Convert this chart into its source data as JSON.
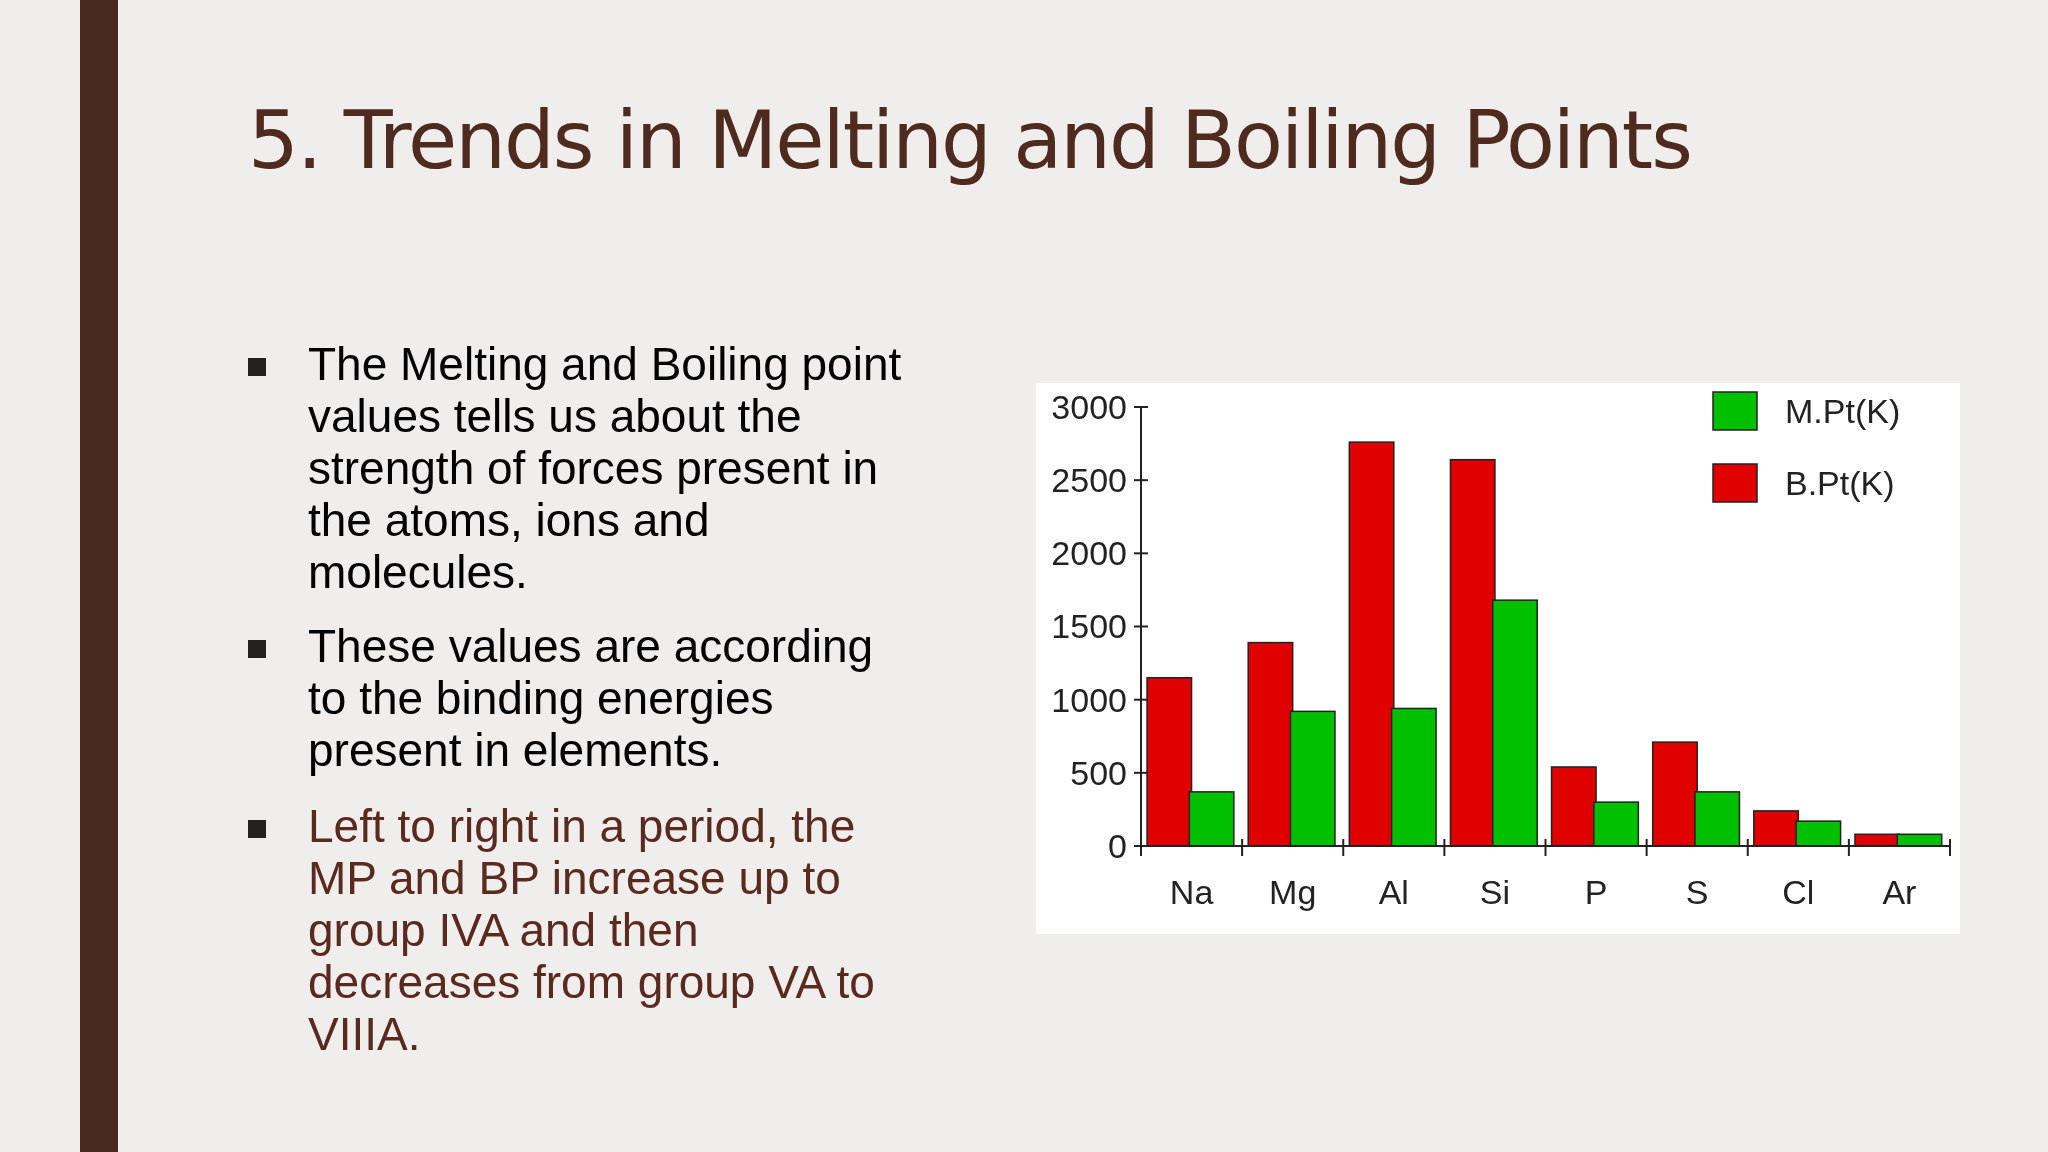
{
  "chart_data": {
    "type": "bar",
    "title": "5. Trends in Melting and Boiling Points",
    "annotations": [
      "The Melting and Boiling point values tells us about the strength of forces present in the atoms, ions and molecules.",
      "These values are according to the binding energies present in elements.",
      "Left to right in a period,  the MP and BP increase up to group IVA and then decreases from group VA to VIIIA."
    ],
    "categories": [
      "Na",
      "Mg",
      "Al",
      "Si",
      "P",
      "S",
      "Cl",
      "Ar"
    ],
    "series": [
      {
        "name": "B.Pt(K)",
        "color": "#e00000",
        "values": [
          1150,
          1390,
          2760,
          2640,
          540,
          710,
          240,
          80
        ]
      },
      {
        "name": "M.Pt(K)",
        "color": "#00c000",
        "values": [
          370,
          920,
          940,
          1680,
          300,
          370,
          170,
          80
        ]
      }
    ],
    "ylim": [
      0,
      3000
    ],
    "yticks": [
      0,
      500,
      1000,
      1500,
      2000,
      2500,
      3000
    ],
    "legend": "top right",
    "grid": false
  }
}
